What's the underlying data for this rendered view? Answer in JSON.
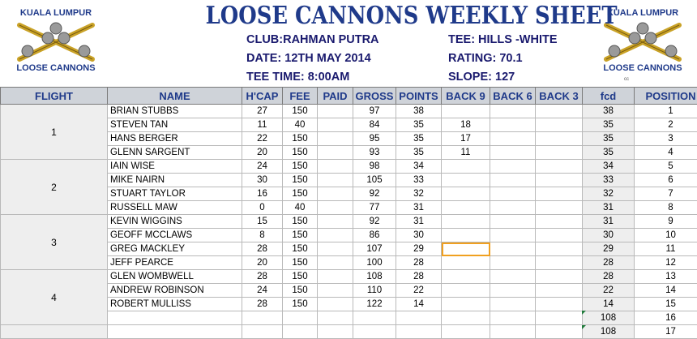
{
  "logo": {
    "top_text": "KUALA LUMPUR",
    "bottom_text": "LOOSE CANNONS",
    "icon": "crossed-cannons-icon"
  },
  "title": "LOOSE CANNONS WEEKLY SHEET",
  "info": {
    "club": "CLUB:RAHMAN PUTRA",
    "date": "DATE: 12TH MAY 2014",
    "tee_time": "TEE TIME: 8:00AM",
    "tee": "TEE: HILLS -WHITE",
    "rating": "RATING: 70.1",
    "slope": "SLOPE: 127"
  },
  "small_mark": "cc",
  "headers": [
    "FLIGHT",
    "NAME",
    "H'CAP",
    "FEE",
    "PAID",
    "GROSS",
    "POINTS",
    "BACK 9",
    "BACK 6",
    "BACK 3",
    "fcd",
    "POSITION"
  ],
  "flights": [
    {
      "label": "1",
      "rows": [
        {
          "name": "BRIAN STUBBS",
          "hcap": "27",
          "fee": "150",
          "paid": "",
          "gross": "97",
          "points": "38",
          "back9": "",
          "back6": "",
          "back3": "",
          "fcd": "38",
          "position": "1"
        },
        {
          "name": "STEVEN TAN",
          "hcap": "11",
          "fee": "40",
          "paid": "",
          "gross": "84",
          "points": "35",
          "back9": "18",
          "back6": "",
          "back3": "",
          "fcd": "35",
          "position": "2"
        },
        {
          "name": "HANS BERGER",
          "hcap": "22",
          "fee": "150",
          "paid": "",
          "gross": "95",
          "points": "35",
          "back9": "17",
          "back6": "",
          "back3": "",
          "fcd": "35",
          "position": "3"
        },
        {
          "name": "GLENN SARGENT",
          "hcap": "20",
          "fee": "150",
          "paid": "",
          "gross": "93",
          "points": "35",
          "back9": "11",
          "back6": "",
          "back3": "",
          "fcd": "35",
          "position": "4"
        }
      ]
    },
    {
      "label": "2",
      "rows": [
        {
          "name": "IAIN WISE",
          "hcap": "24",
          "fee": "150",
          "paid": "",
          "gross": "98",
          "points": "34",
          "back9": "",
          "back6": "",
          "back3": "",
          "fcd": "34",
          "position": "5"
        },
        {
          "name": "MIKE NAIRN",
          "hcap": "30",
          "fee": "150",
          "paid": "",
          "gross": "105",
          "points": "33",
          "back9": "",
          "back6": "",
          "back3": "",
          "fcd": "33",
          "position": "6"
        },
        {
          "name": "STUART TAYLOR",
          "hcap": "16",
          "fee": "150",
          "paid": "",
          "gross": "92",
          "points": "32",
          "back9": "",
          "back6": "",
          "back3": "",
          "fcd": "32",
          "position": "7"
        },
        {
          "name": "RUSSELL MAW",
          "hcap": "0",
          "fee": "40",
          "paid": "",
          "gross": "77",
          "points": "31",
          "back9": "",
          "back6": "",
          "back3": "",
          "fcd": "31",
          "position": "8"
        }
      ]
    },
    {
      "label": "3",
      "rows": [
        {
          "name": "KEVIN WIGGINS",
          "hcap": "15",
          "fee": "150",
          "paid": "",
          "gross": "92",
          "points": "31",
          "back9": "",
          "back6": "",
          "back3": "",
          "fcd": "31",
          "position": "9"
        },
        {
          "name": "GEOFF MCCLAWS",
          "hcap": "8",
          "fee": "150",
          "paid": "",
          "gross": "86",
          "points": "30",
          "back9": "",
          "back6": "",
          "back3": "",
          "fcd": "30",
          "position": "10"
        },
        {
          "name": "GREG MACKLEY",
          "hcap": "28",
          "fee": "150",
          "paid": "",
          "gross": "107",
          "points": "29",
          "back9": "",
          "back6": "",
          "back3": "",
          "fcd": "29",
          "position": "11"
        },
        {
          "name": "JEFF PEARCE",
          "hcap": "20",
          "fee": "150",
          "paid": "",
          "gross": "100",
          "points": "28",
          "back9": "",
          "back6": "",
          "back3": "",
          "fcd": "28",
          "position": "12"
        }
      ]
    },
    {
      "label": "4",
      "rows": [
        {
          "name": "GLEN WOMBWELL",
          "hcap": "28",
          "fee": "150",
          "paid": "",
          "gross": "108",
          "points": "28",
          "back9": "",
          "back6": "",
          "back3": "",
          "fcd": "28",
          "position": "13"
        },
        {
          "name": "ANDREW ROBINSON",
          "hcap": "24",
          "fee": "150",
          "paid": "",
          "gross": "110",
          "points": "22",
          "back9": "",
          "back6": "",
          "back3": "",
          "fcd": "22",
          "position": "14"
        },
        {
          "name": "ROBERT MULLISS",
          "hcap": "28",
          "fee": "150",
          "paid": "",
          "gross": "122",
          "points": "14",
          "back9": "",
          "back6": "",
          "back3": "",
          "fcd": "14",
          "position": "15"
        },
        {
          "name": "",
          "hcap": "",
          "fee": "",
          "paid": "",
          "gross": "",
          "points": "",
          "back9": "",
          "back6": "",
          "back3": "",
          "fcd": "108",
          "position": "16"
        }
      ]
    },
    {
      "label": "",
      "rows": [
        {
          "name": "",
          "hcap": "",
          "fee": "",
          "paid": "",
          "gross": "",
          "points": "",
          "back9": "",
          "back6": "",
          "back3": "",
          "fcd": "108",
          "position": "17"
        }
      ]
    }
  ],
  "colors": {
    "title": "#1f3a8a",
    "header_bg": "#cfd3d9",
    "selection": "#f0a020",
    "logo_gold": "#c9a227"
  }
}
